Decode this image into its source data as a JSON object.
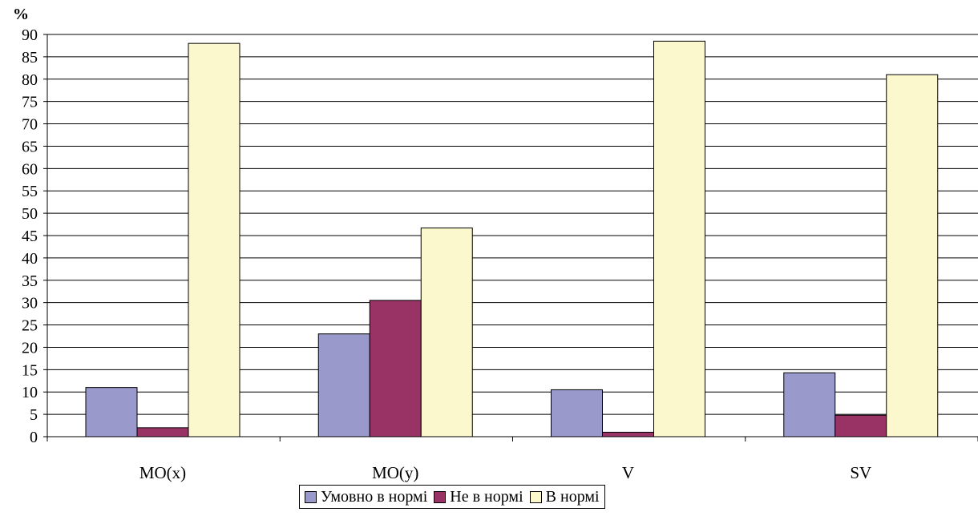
{
  "chart_data": {
    "type": "bar",
    "title": "",
    "ylabel": "%",
    "xlabel": "",
    "ylim": [
      0,
      90
    ],
    "y_ticks": [
      0,
      5,
      10,
      15,
      20,
      25,
      30,
      35,
      40,
      45,
      50,
      55,
      60,
      65,
      70,
      75,
      80,
      85,
      90
    ],
    "grid": true,
    "legend_position": "bottom",
    "categories": [
      "MO(x)",
      "MO(y)",
      "V",
      "SV"
    ],
    "series": [
      {
        "name": "Умовно в нормі",
        "color": "#9999cc",
        "values": [
          11,
          23,
          10.5,
          14.3
        ]
      },
      {
        "name": "Не в нормі",
        "color": "#993366",
        "values": [
          2,
          30.5,
          1,
          4.8
        ]
      },
      {
        "name": "В нормі",
        "color": "#fbf8cd",
        "values": [
          88,
          46.7,
          88.5,
          81
        ]
      }
    ]
  }
}
